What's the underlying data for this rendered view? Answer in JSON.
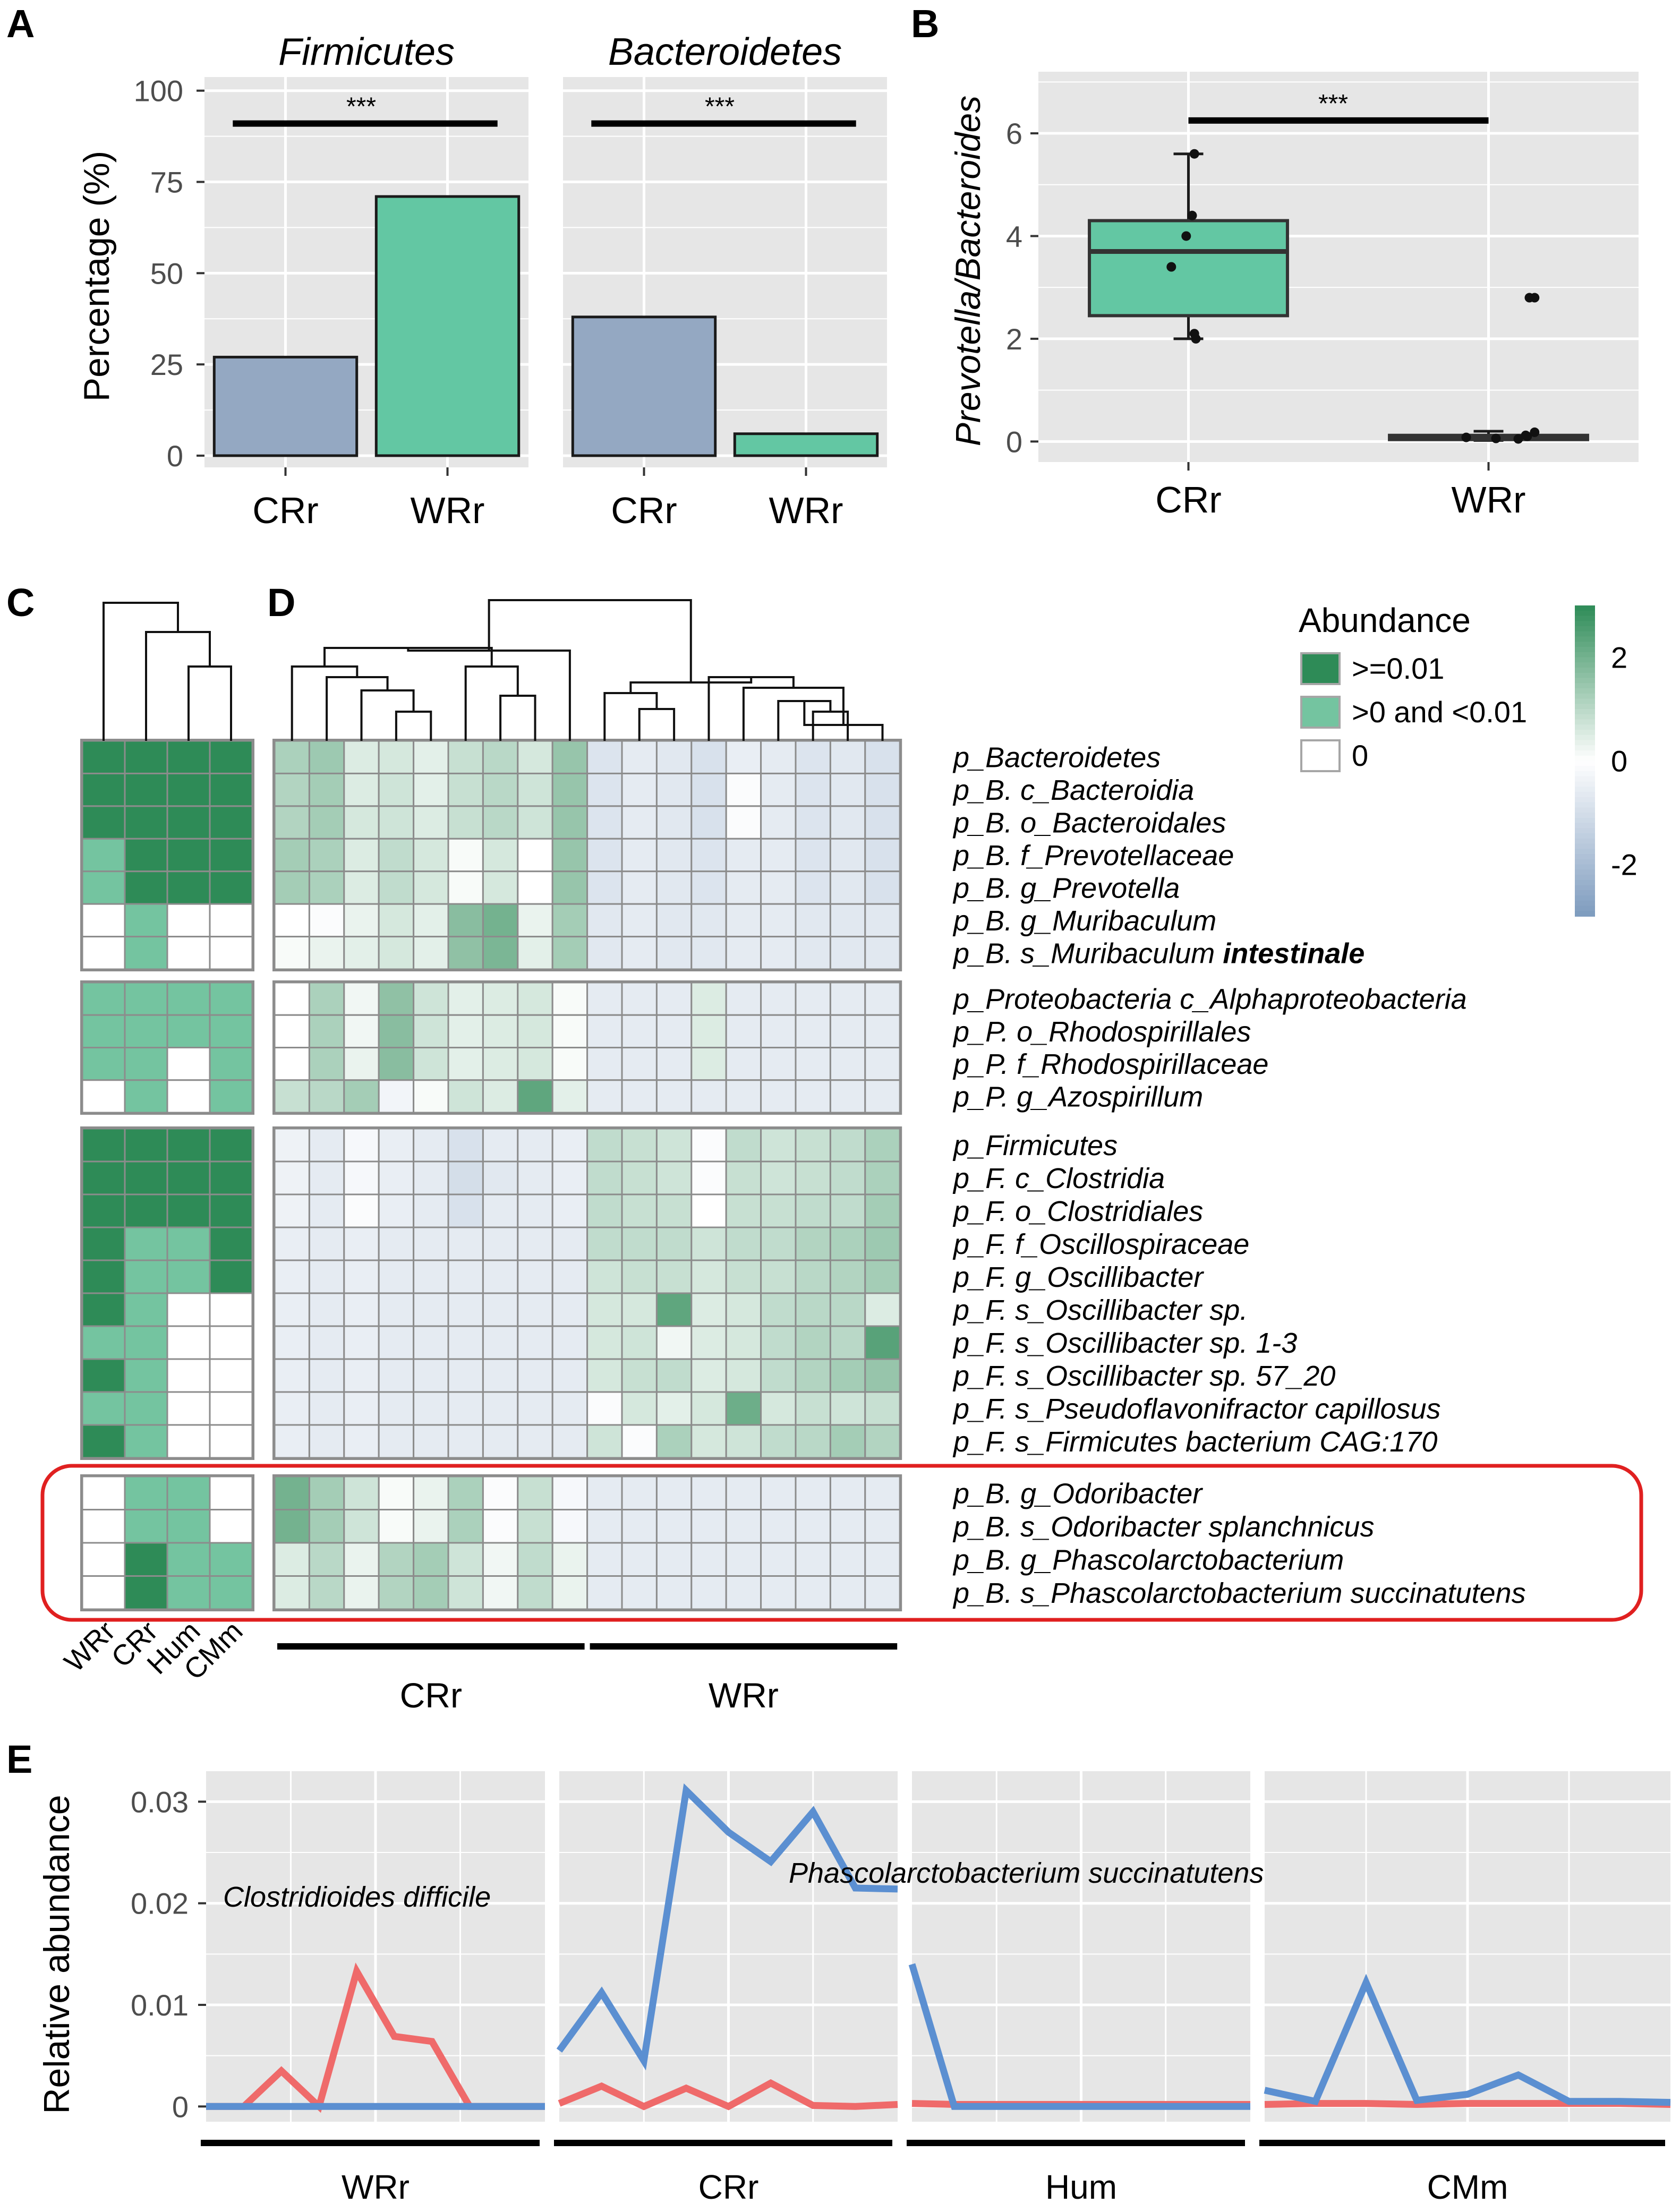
{
  "panel_labels": {
    "a": "A",
    "b": "B",
    "c": "C",
    "d": "D",
    "e": "E"
  },
  "colors": {
    "crr_bar": "#94a8c2",
    "wrr_bar": "#63c7a3",
    "panel_bg": "#e6e6e6",
    "grid": "#ffffff",
    "dark_green": "#2e8b57",
    "mid_green": "#74c4a0",
    "line_cd": "#ef6a6a",
    "line_ps": "#5b8fd1",
    "highlight": "#e02020"
  },
  "chart_data": [
    {
      "id": "A",
      "type": "bar",
      "ylabel": "Percentage (%)",
      "ylim": [
        0,
        100
      ],
      "yticks": [
        "0",
        "25",
        "50",
        "75",
        "100"
      ],
      "facets": [
        {
          "title": "Firmicutes",
          "categories": [
            "CRr",
            "WRr"
          ],
          "values": [
            27,
            71
          ],
          "significance": "***"
        },
        {
          "title": "Bacteroidetes",
          "categories": [
            "CRr",
            "WRr"
          ],
          "values": [
            38,
            6
          ],
          "significance": "***"
        }
      ]
    },
    {
      "id": "B",
      "type": "box",
      "ylabel": "Prevotella/Bacteroides",
      "ylim": [
        -0.4,
        7.2
      ],
      "yticks": [
        "0",
        "2",
        "4",
        "6"
      ],
      "categories": [
        "CRr",
        "WRr"
      ],
      "significance": "***",
      "boxes": [
        {
          "min": 2.0,
          "q1": 2.45,
          "median": 3.7,
          "q3": 4.3,
          "max": 5.6
        },
        {
          "min": 0.02,
          "q1": 0.05,
          "median": 0.08,
          "q3": 0.12,
          "max": 0.2
        }
      ],
      "points": [
        [
          3.4,
          4.0,
          4.4,
          5.6,
          2.1,
          2.0
        ],
        [
          2.8,
          2.8,
          0.18,
          0.08,
          0.05,
          0.1,
          0.06,
          0.12
        ]
      ]
    },
    {
      "id": "C",
      "type": "heatmap",
      "columns": [
        "WRr",
        "CRr",
        "Hum",
        "CMm"
      ],
      "levels": [
        ">=0.01",
        ">0 and <0.01",
        "0"
      ],
      "blocks": [
        [
          [
            2,
            2,
            2,
            2
          ],
          [
            2,
            2,
            2,
            2
          ],
          [
            2,
            2,
            2,
            2
          ],
          [
            1,
            2,
            2,
            2
          ],
          [
            1,
            2,
            2,
            2
          ],
          [
            0,
            1,
            0,
            0
          ],
          [
            0,
            1,
            0,
            0
          ]
        ],
        [
          [
            1,
            1,
            1,
            1
          ],
          [
            1,
            1,
            1,
            1
          ],
          [
            1,
            1,
            0,
            1
          ],
          [
            0,
            1,
            0,
            1
          ]
        ],
        [
          [
            2,
            2,
            2,
            2
          ],
          [
            2,
            2,
            2,
            2
          ],
          [
            2,
            2,
            2,
            2
          ],
          [
            2,
            1,
            1,
            2
          ],
          [
            2,
            1,
            1,
            2
          ],
          [
            2,
            1,
            0,
            0
          ],
          [
            1,
            1,
            0,
            0
          ],
          [
            2,
            1,
            0,
            0
          ],
          [
            1,
            1,
            0,
            0
          ],
          [
            2,
            1,
            0,
            0
          ]
        ],
        [
          [
            0,
            1,
            1,
            0
          ],
          [
            0,
            1,
            1,
            0
          ],
          [
            0,
            2,
            1,
            1
          ],
          [
            0,
            2,
            1,
            1
          ]
        ]
      ]
    },
    {
      "id": "D",
      "type": "heatmap",
      "legend_title": "Abundance",
      "legend_items": [
        ">=0.01",
        ">0 and <0.01",
        "0"
      ],
      "colorbar_ticks": [
        "2",
        "0",
        "-2"
      ],
      "colorbar_range": [
        -3,
        3
      ],
      "groups": [
        "CRr",
        "WRr"
      ],
      "group_sizes": [
        9,
        9
      ],
      "rows": [
        "p_Bacteroidetes",
        "p_B. c_Bacteroidia",
        "p_B. o_Bacteroidales",
        "p_B. f_Prevotellaceae",
        "p_B. g_Prevotella",
        "p_B. g_Muribaculum",
        "p_B. s_Muribaculum intestinale",
        "p_Proteobacteria  c_Alphaproteobacteria",
        "p_P. o_Rhodospirillales",
        "p_P. f_Rhodospirillaceae",
        "p_P. g_Azospirillum",
        "p_Firmicutes",
        "p_F. c_Clostridia",
        "p_F. o_Clostridiales",
        "p_F. f_Oscillospiraceae",
        "p_F. g_Oscillibacter",
        "p_F. s_Oscillibacter sp.",
        "p_F. s_Oscillibacter sp. 1-3",
        "p_F. s_Oscillibacter sp. 57_20",
        "p_F. s_Pseudoflavonifractor capillosus",
        "p_F. s_Firmicutes bacterium CAG:170",
        "p_B. g_Odoribacter",
        "p_B. s_Odoribacter splanchnicus",
        "p_B. g_Phascolarctobacterium",
        "p_B. s_Phascolarctobacterium succinatutens"
      ],
      "row_blocks": [
        7,
        4,
        10,
        4
      ],
      "bold_suffix": {
        "row": 6,
        "plain": "p_B. s_Muribaculum ",
        "bold": "intestinale"
      },
      "values": [
        [
          1.2,
          1.4,
          0.5,
          0.6,
          0.4,
          0.8,
          1.0,
          0.6,
          1.5,
          -0.8,
          -0.6,
          -0.7,
          -0.9,
          -0.5,
          -0.6,
          -0.8,
          -0.7,
          -0.9
        ],
        [
          1.1,
          1.3,
          0.5,
          0.7,
          0.4,
          0.8,
          1.0,
          0.7,
          1.5,
          -0.8,
          -0.6,
          -0.7,
          -0.9,
          -0.1,
          -0.6,
          -0.8,
          -0.7,
          -0.9
        ],
        [
          1.1,
          1.3,
          0.6,
          0.7,
          0.5,
          0.8,
          1.0,
          0.7,
          1.5,
          -0.8,
          -0.6,
          -0.7,
          -0.9,
          -0.1,
          -0.6,
          -0.8,
          -0.7,
          -0.9
        ],
        [
          1.3,
          1.2,
          0.5,
          0.9,
          0.6,
          0.1,
          0.6,
          0.0,
          1.5,
          -0.8,
          -0.6,
          -0.7,
          -0.8,
          -0.6,
          -0.6,
          -0.8,
          -0.7,
          -0.9
        ],
        [
          1.3,
          1.2,
          0.5,
          0.9,
          0.6,
          0.1,
          0.6,
          0.0,
          1.5,
          -0.8,
          -0.6,
          -0.7,
          -0.8,
          -0.6,
          -0.6,
          -0.8,
          -0.7,
          -0.9
        ],
        [
          0.0,
          -0.1,
          0.3,
          0.6,
          0.4,
          1.7,
          2.0,
          0.3,
          1.3,
          -0.7,
          -0.6,
          -0.7,
          -0.7,
          -0.6,
          -0.6,
          -0.7,
          -0.7,
          -0.7
        ],
        [
          0.1,
          0.3,
          0.4,
          0.6,
          0.4,
          1.6,
          1.9,
          0.4,
          1.3,
          -0.7,
          -0.6,
          -0.7,
          -0.7,
          -0.6,
          -0.6,
          -0.7,
          -0.7,
          -0.7
        ],
        [
          0.0,
          1.2,
          0.2,
          1.6,
          0.7,
          0.4,
          0.5,
          0.6,
          0.1,
          -0.6,
          -0.6,
          -0.6,
          0.5,
          -0.6,
          -0.6,
          -0.6,
          -0.6,
          -0.6
        ],
        [
          0.0,
          1.2,
          0.2,
          1.7,
          0.7,
          0.4,
          0.5,
          0.6,
          0.1,
          -0.6,
          -0.6,
          -0.6,
          0.5,
          -0.6,
          -0.6,
          -0.6,
          -0.6,
          -0.6
        ],
        [
          0.0,
          1.2,
          0.3,
          1.7,
          0.7,
          0.4,
          0.5,
          0.6,
          0.1,
          -0.6,
          -0.6,
          -0.6,
          0.5,
          -0.6,
          -0.6,
          -0.6,
          -0.6,
          -0.6
        ],
        [
          0.8,
          1.0,
          1.3,
          -0.3,
          0.1,
          0.7,
          0.5,
          2.3,
          0.4,
          -0.6,
          -0.6,
          -0.6,
          -0.6,
          -0.6,
          -0.6,
          -0.6,
          -0.6,
          -0.6
        ],
        [
          -0.4,
          -0.6,
          -0.2,
          -0.5,
          -0.6,
          -0.9,
          -0.6,
          -0.6,
          -0.5,
          0.9,
          0.8,
          0.7,
          -0.1,
          0.9,
          0.7,
          0.8,
          0.9,
          1.2
        ],
        [
          -0.4,
          -0.6,
          -0.2,
          -0.5,
          -0.6,
          -1.0,
          -0.7,
          -0.6,
          -0.5,
          0.9,
          0.8,
          0.7,
          -0.1,
          0.8,
          0.7,
          0.8,
          0.9,
          1.2
        ],
        [
          -0.4,
          -0.6,
          -0.1,
          -0.5,
          -0.6,
          -0.9,
          -0.6,
          -0.6,
          -0.5,
          0.9,
          0.8,
          0.8,
          0.0,
          0.8,
          0.8,
          0.9,
          0.9,
          1.3
        ],
        [
          -0.5,
          -0.6,
          -0.5,
          -0.6,
          -0.6,
          -0.6,
          -0.6,
          -0.6,
          -0.6,
          0.9,
          0.9,
          0.9,
          0.7,
          0.9,
          0.9,
          1.1,
          1.2,
          1.4
        ],
        [
          -0.5,
          -0.6,
          -0.5,
          -0.6,
          -0.6,
          -0.6,
          -0.6,
          -0.6,
          -0.6,
          0.7,
          0.8,
          0.8,
          0.6,
          0.8,
          0.8,
          1.0,
          1.1,
          1.3
        ],
        [
          -0.5,
          -0.6,
          -0.5,
          -0.6,
          -0.6,
          -0.6,
          -0.6,
          -0.6,
          -0.6,
          0.6,
          0.6,
          2.3,
          0.5,
          0.6,
          0.9,
          1.0,
          1.0,
          0.5
        ],
        [
          -0.5,
          -0.6,
          -0.5,
          -0.6,
          -0.6,
          -0.6,
          -0.6,
          -0.6,
          -0.6,
          0.6,
          0.7,
          0.2,
          0.5,
          0.6,
          0.9,
          1.1,
          1.0,
          2.4
        ],
        [
          -0.5,
          -0.6,
          -0.5,
          -0.6,
          -0.6,
          -0.6,
          -0.6,
          -0.6,
          -0.6,
          0.6,
          0.8,
          0.9,
          0.5,
          0.6,
          0.9,
          1.1,
          1.3,
          1.5
        ],
        [
          -0.5,
          -0.6,
          -0.5,
          -0.6,
          -0.6,
          -0.6,
          -0.6,
          -0.6,
          -0.6,
          -0.1,
          0.6,
          0.4,
          0.6,
          2.1,
          0.6,
          0.8,
          0.7,
          0.8
        ],
        [
          -0.5,
          -0.6,
          -0.5,
          -0.6,
          -0.6,
          -0.6,
          -0.6,
          -0.6,
          -0.6,
          0.7,
          -0.1,
          1.2,
          0.6,
          0.7,
          0.9,
          1.0,
          1.3,
          1.1
        ],
        [
          2.0,
          1.3,
          0.7,
          0.1,
          0.3,
          1.2,
          -0.1,
          0.8,
          -0.2,
          -0.6,
          -0.6,
          -0.6,
          -0.6,
          -0.6,
          -0.6,
          -0.6,
          -0.6,
          -0.6
        ],
        [
          2.0,
          1.3,
          0.7,
          0.1,
          0.3,
          1.2,
          -0.1,
          0.8,
          -0.2,
          -0.6,
          -0.6,
          -0.6,
          -0.6,
          -0.6,
          -0.6,
          -0.6,
          -0.6,
          -0.6
        ],
        [
          0.5,
          1.0,
          0.3,
          1.1,
          1.3,
          0.7,
          0.2,
          0.9,
          0.3,
          -0.6,
          -0.6,
          -0.6,
          -0.6,
          -0.6,
          -0.6,
          -0.6,
          -0.6,
          -0.6
        ],
        [
          0.5,
          1.0,
          0.3,
          1.1,
          1.3,
          0.7,
          0.2,
          0.9,
          0.3,
          -0.6,
          -0.6,
          -0.6,
          -0.6,
          -0.6,
          -0.6,
          -0.6,
          -0.6,
          -0.6
        ]
      ]
    },
    {
      "id": "E",
      "type": "line",
      "ylabel": "Relative abundance",
      "ylim": [
        -0.0015,
        0.033
      ],
      "yticks": [
        "0",
        "0.01",
        "0.02",
        "0.03"
      ],
      "facets": [
        "WRr",
        "CRr",
        "Hum",
        "CMm"
      ],
      "annotations": [
        "Clostridioides difficile",
        "Phascolarctobacterium succinatutens"
      ],
      "series": [
        {
          "name": "Clostridioides difficile",
          "facet_values": [
            [
              0,
              0,
              0.0035,
              0,
              0.0133,
              0.0069,
              0.0064,
              0,
              0,
              0
            ],
            [
              0.0003,
              0.002,
              0,
              0.0018,
              0,
              0.0023,
              0.0001,
              0,
              0.0002
            ],
            [
              0.0003,
              0.0002,
              0.0002,
              0.0002,
              0.0002,
              0.0002,
              0.0002,
              0.0002,
              0.0002
            ],
            [
              0.0002,
              0.0003,
              0.0003,
              0.0002,
              0.0003,
              0.0003,
              0.0003,
              0.0003,
              0.0002
            ]
          ]
        },
        {
          "name": "Phascolarctobacterium succinatutens",
          "facet_values": [
            [
              0,
              0,
              0,
              0,
              0,
              0,
              0,
              0,
              0,
              0
            ],
            [
              0.0055,
              0.0112,
              0.0045,
              0.0311,
              0.027,
              0.0241,
              0.029,
              0.0215,
              0.0214
            ],
            [
              0.014,
              0,
              0,
              0,
              0,
              0,
              0,
              0,
              0
            ],
            [
              0.0016,
              0.0005,
              0.0122,
              0.0006,
              0.0012,
              0.0031,
              0.0005,
              0.0005,
              0.0004
            ]
          ]
        }
      ]
    }
  ]
}
